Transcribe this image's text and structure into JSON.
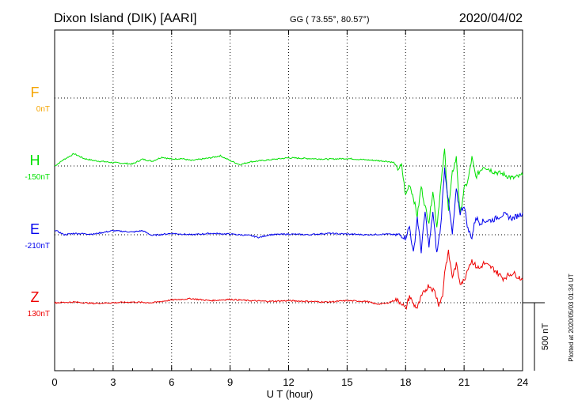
{
  "header": {
    "station": "Dixon Island (DIK)  [AARI]",
    "coords": "GG ( 73.55°,  80.57°)",
    "date": "2020/04/02"
  },
  "plotted_note": "Plotted at 2020/05/03 01:34 UT",
  "colors": {
    "F": "#f5a500",
    "H": "#00e000",
    "E": "#0000ee",
    "Z": "#ee0000",
    "grid": "#000000"
  },
  "chart_data": {
    "type": "line",
    "title": "Dixon Island (DIK)  [AARI]",
    "xlabel": "U T (hour)",
    "ylabel": "",
    "xlim": [
      0,
      24
    ],
    "x_ticks": [
      "0",
      "3",
      "6",
      "9",
      "12",
      "15",
      "18",
      "21",
      "24"
    ],
    "scale_bar_label": "500 nT",
    "scale_bar_nT": 500,
    "grid": true,
    "series": [
      {
        "name": "F",
        "baseline_label": "0nT",
        "x": [],
        "values": []
      },
      {
        "name": "H",
        "baseline_label": "-150nT",
        "x": [
          0,
          0.5,
          1,
          1.5,
          2,
          3,
          4,
          4.5,
          5,
          5.5,
          6,
          6.5,
          7,
          7.5,
          8,
          8.5,
          9,
          9.5,
          10,
          11,
          12,
          13,
          14,
          15,
          16,
          16.5,
          17,
          17.4,
          17.6,
          17.8,
          18,
          18.2,
          18.4,
          18.6,
          18.8,
          19,
          19.2,
          19.4,
          19.6,
          19.8,
          20,
          20.2,
          20.4,
          20.6,
          20.8,
          21,
          21.2,
          21.4,
          21.6,
          21.8,
          22,
          22.5,
          23,
          23.5,
          24
        ],
        "values": [
          -150,
          -100,
          -60,
          -95,
          -110,
          -125,
          -135,
          -100,
          -115,
          -85,
          -100,
          -95,
          -110,
          -100,
          -90,
          -75,
          -110,
          -140,
          -120,
          -105,
          -90,
          -95,
          -100,
          -95,
          -105,
          -110,
          -115,
          -125,
          -170,
          -150,
          -370,
          -280,
          -380,
          -520,
          -300,
          -450,
          -560,
          -330,
          -600,
          -310,
          -30,
          -480,
          -200,
          -90,
          -510,
          -320,
          -260,
          -90,
          -230,
          -190,
          -150,
          -190,
          -210,
          -240,
          -220
        ]
      },
      {
        "name": "E",
        "baseline_label": "-210nT",
        "x": [
          0,
          0.5,
          1,
          2,
          3,
          4,
          4.5,
          5,
          6,
          7,
          8,
          9,
          10,
          10.5,
          11,
          12,
          13,
          14,
          15,
          16,
          17,
          17.5,
          17.8,
          18,
          18.2,
          18.4,
          18.6,
          18.8,
          19,
          19.2,
          19.4,
          19.6,
          19.8,
          20,
          20.2,
          20.4,
          20.6,
          20.8,
          21,
          21.2,
          21.4,
          21.6,
          21.8,
          22,
          22.5,
          23,
          23.5,
          24
        ],
        "values": [
          -175,
          -210,
          -200,
          -205,
          -180,
          -190,
          -180,
          -215,
          -200,
          -210,
          -200,
          -205,
          -215,
          -230,
          -210,
          -205,
          -210,
          -200,
          -205,
          -210,
          -205,
          -210,
          -215,
          -230,
          -150,
          -350,
          -80,
          -330,
          -40,
          -300,
          -40,
          -350,
          -150,
          280,
          30,
          -210,
          120,
          -50,
          10,
          -170,
          -230,
          -80,
          -120,
          -110,
          -100,
          -60,
          -90,
          -50
        ]
      },
      {
        "name": "Z",
        "baseline_label": "130nT",
        "x": [
          0,
          1,
          2,
          3,
          4,
          5,
          6,
          7,
          8,
          9,
          10,
          11,
          12,
          13,
          14,
          15,
          16,
          16.5,
          17,
          17.5,
          17.8,
          18,
          18.2,
          18.4,
          18.6,
          18.8,
          19,
          19.2,
          19.5,
          19.7,
          19.9,
          20,
          20.2,
          20.4,
          20.6,
          20.8,
          21,
          21.2,
          21.4,
          21.6,
          21.8,
          22,
          22.5,
          23,
          23.5,
          24
        ],
        "values": [
          130,
          135,
          125,
          130,
          135,
          130,
          150,
          160,
          145,
          155,
          145,
          140,
          145,
          140,
          135,
          145,
          140,
          120,
          125,
          150,
          130,
          80,
          180,
          120,
          90,
          170,
          220,
          260,
          210,
          120,
          180,
          360,
          500,
          320,
          410,
          280,
          290,
          390,
          440,
          400,
          380,
          420,
          380,
          310,
          350,
          300
        ]
      }
    ]
  }
}
